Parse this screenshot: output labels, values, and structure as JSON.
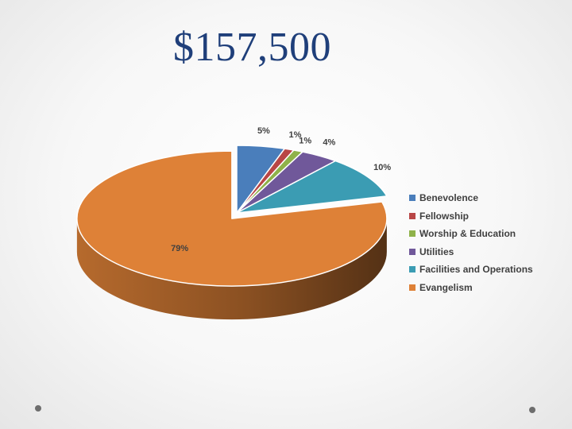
{
  "slide": {
    "title": "$157,500"
  },
  "chart_data": {
    "type": "pie",
    "title": "",
    "labels": [
      "Benevolence",
      "Fellowship",
      "Worship & Education",
      "Utilities",
      "Facilities and Operations",
      "Evangelism"
    ],
    "values": [
      5,
      1,
      1,
      4,
      10,
      79
    ],
    "value_labels": [
      "5%",
      "1%",
      "1%",
      "4%",
      "10%",
      "79%"
    ],
    "unit": "%",
    "colors": [
      "#4a7ebb",
      "#b84646",
      "#8fb24a",
      "#70589a",
      "#3b9cb3",
      "#de8137"
    ],
    "three_d": true,
    "exploded_slice": "Evangelism",
    "legend_position": "right"
  }
}
